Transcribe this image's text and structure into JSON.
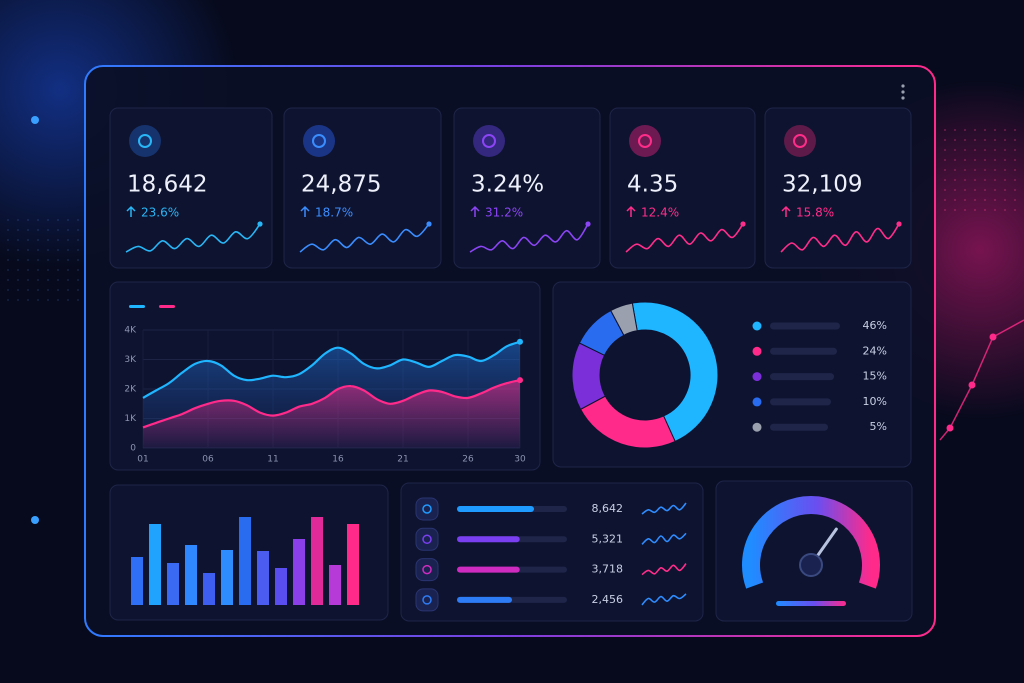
{
  "kpis": [
    {
      "value": "18,642",
      "change": "23.6%",
      "color": "#29b6f6",
      "spark": [
        3,
        4,
        3.2,
        5,
        3.6,
        5.4,
        4,
        6,
        4.6,
        6.6,
        5.4,
        8
      ]
    },
    {
      "value": "24,875",
      "change": "18.7%",
      "color": "#3a8dff",
      "spark": [
        3,
        4.4,
        3.4,
        5.2,
        3.8,
        5.6,
        4.4,
        6.2,
        4.8,
        7,
        5.8,
        8
      ]
    },
    {
      "value": "3.24%",
      "change": "31.2%",
      "color": "#8b45f5",
      "spark": [
        3,
        4,
        3.4,
        5,
        3.6,
        5.6,
        4.2,
        6,
        4.8,
        6.8,
        5.2,
        8
      ]
    },
    {
      "value": "4.35",
      "change": "12.4%",
      "color": "#ff2d8a",
      "spark": [
        3,
        4.4,
        3.6,
        5.4,
        4,
        6,
        4.4,
        6.4,
        5,
        7,
        5.6,
        8
      ]
    },
    {
      "value": "32,109",
      "change": "15.8%",
      "color": "#ff2d8a",
      "spark": [
        3,
        4.6,
        3.4,
        5.6,
        4,
        6,
        4.2,
        6.6,
        4.8,
        7.2,
        5.4,
        8
      ]
    }
  ],
  "trend": {
    "type": "line",
    "x": [
      1,
      2,
      3,
      4,
      5,
      6,
      7,
      8,
      9,
      10,
      11,
      12,
      13,
      14,
      15,
      16,
      17,
      18,
      19,
      20,
      21,
      22,
      23,
      24,
      25,
      26,
      27,
      28,
      29,
      30
    ],
    "xlim": [
      1,
      30
    ],
    "xticks": [
      {
        "value": 1,
        "label": "01"
      },
      {
        "value": 6,
        "label": "06"
      },
      11,
      16,
      21,
      26,
      30
    ],
    "ylim": [
      0,
      4000
    ],
    "yticks": [
      {
        "value": 0,
        "label": "0"
      },
      {
        "value": 1000,
        "label": "1K"
      },
      {
        "value": 2000,
        "label": "2K"
      },
      {
        "value": 3000,
        "label": "3K"
      },
      {
        "value": 4000,
        "label": "4K"
      }
    ],
    "grid": true,
    "series": [
      {
        "color": "#1fb5ff",
        "values": [
          1700,
          1950,
          2200,
          2550,
          2850,
          2950,
          2800,
          2450,
          2300,
          2350,
          2450,
          2400,
          2500,
          2800,
          3200,
          3400,
          3200,
          2850,
          2700,
          2800,
          3000,
          2900,
          2750,
          2950,
          3150,
          3100,
          2950,
          3150,
          3450,
          3600
        ]
      },
      {
        "color": "#ff2a8a",
        "values": [
          700,
          850,
          1000,
          1150,
          1350,
          1500,
          1600,
          1600,
          1450,
          1200,
          1100,
          1200,
          1400,
          1500,
          1700,
          2000,
          2100,
          1950,
          1650,
          1500,
          1600,
          1800,
          1950,
          1900,
          1750,
          1700,
          1850,
          2050,
          2200,
          2300
        ]
      }
    ]
  },
  "share": {
    "type": "pie",
    "values": [
      46,
      24,
      15,
      10,
      5
    ],
    "value_labels": [
      "46%",
      "24%",
      "15%",
      "10%",
      "5%"
    ],
    "colors": [
      "#1fb5ff",
      "#ff2a8a",
      "#7b2fd9",
      "#2a6cf0",
      "#9aa0ad"
    ]
  },
  "bars": {
    "type": "bar",
    "ylim": [
      0,
      100
    ],
    "values": [
      48,
      81,
      42,
      60,
      32,
      55,
      88,
      54,
      37,
      66,
      88,
      40,
      81
    ],
    "colors": [
      "#2f6ff5",
      "#1fa3ff",
      "#3a6af2",
      "#2f88ff",
      "#3d5ef0",
      "#2f8cff",
      "#2a6cf0",
      "#4b5cf0",
      "#5a4ef0",
      "#8a3fe8",
      "#e02a9a",
      "#b63ad8",
      "#ff2a8a"
    ]
  },
  "channels": [
    {
      "value": "8,642",
      "progress": 70,
      "color": "#1f9bff",
      "spark_color": "#2f8cff",
      "spark": [
        2,
        3,
        2.4,
        3.6,
        2.8,
        4,
        3,
        4.6
      ]
    },
    {
      "value": "5,321",
      "progress": 57,
      "color": "#7b3ff2",
      "spark_color": "#2f8cff",
      "spark": [
        2,
        3.2,
        2.4,
        3.8,
        2.6,
        4,
        3.2,
        4.4
      ]
    },
    {
      "value": "3,718",
      "progress": 57,
      "color": "#d02bc0",
      "spark_color": "#ff2d8a",
      "spark": [
        2,
        3,
        2.2,
        3.6,
        2.8,
        4.2,
        3,
        4.6
      ]
    },
    {
      "value": "2,456",
      "progress": 50,
      "color": "#2d7cf6",
      "spark_color": "#2f8cff",
      "spark": [
        2,
        3.4,
        2.6,
        3.8,
        2.8,
        4,
        3.4,
        4.4
      ]
    }
  ],
  "gauge": {
    "value": 66,
    "lim": [
      0,
      100
    ]
  }
}
